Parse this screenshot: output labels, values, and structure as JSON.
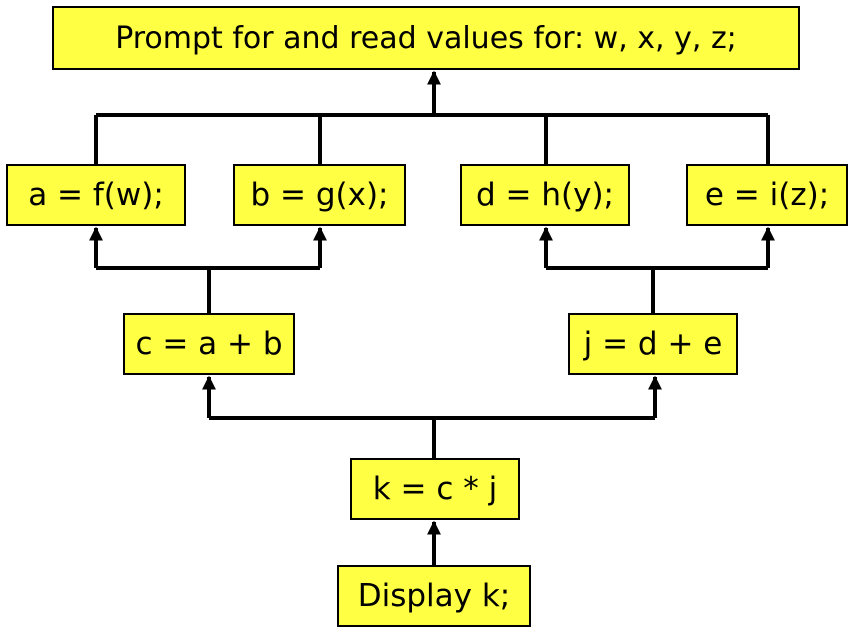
{
  "nodes": {
    "prompt": "Prompt for and read values for: w, x, y, z;",
    "a": "a = f(w);",
    "b": "b = g(x);",
    "d": "d = h(y);",
    "e": "e = i(z);",
    "c": "c = a + b",
    "j": "j = d + e",
    "k": "k = c * j",
    "display": "Display k;"
  },
  "colors": {
    "node_fill": "#ffff44",
    "line": "#000000"
  }
}
